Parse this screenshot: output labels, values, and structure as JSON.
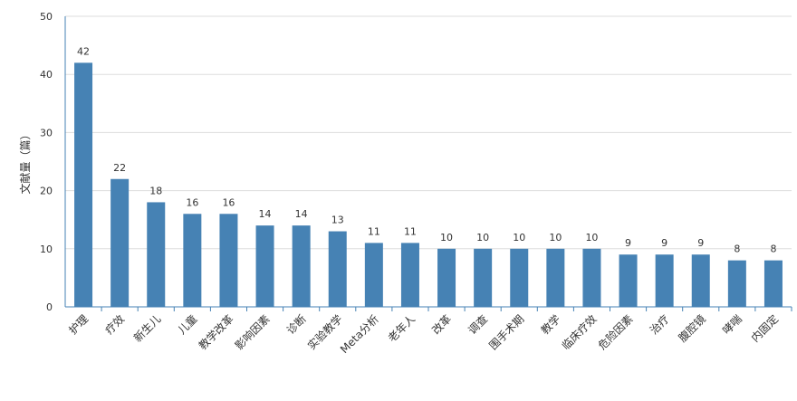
{
  "chart_data": {
    "type": "bar",
    "title": "",
    "xlabel": "",
    "ylabel": "文献量（篇）",
    "ylim": [
      0,
      50
    ],
    "yticks": [
      0,
      10,
      20,
      30,
      40,
      50
    ],
    "grid": true,
    "categories": [
      "护理",
      "疗效",
      "新生儿",
      "儿童",
      "教学改革",
      "影响因素",
      "诊断",
      "实验教学",
      "Meta分析",
      "老年人",
      "改革",
      "调查",
      "围手术期",
      "教学",
      "临床疗效",
      "危险因素",
      "治疗",
      "腹腔镜",
      "哮喘",
      "内固定"
    ],
    "values": [
      42,
      22,
      18,
      16,
      16,
      14,
      14,
      13,
      11,
      11,
      10,
      10,
      10,
      10,
      10,
      9,
      9,
      9,
      8,
      8
    ],
    "colors": {
      "bar": "#4682b4",
      "grid": "#dddddd",
      "axis": "#4682b4"
    }
  }
}
